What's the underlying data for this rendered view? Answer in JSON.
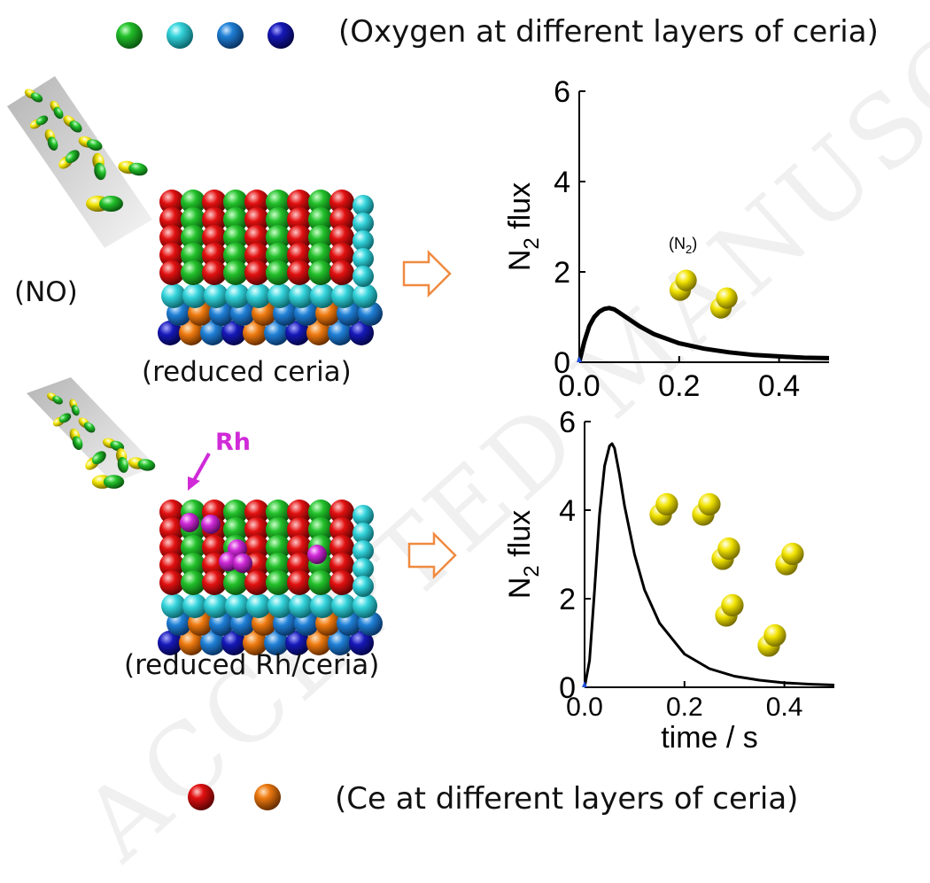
{
  "legend": {
    "oxygen_text": "(Oxygen at different layers of ceria)",
    "ce_text": "(Ce at different layers of ceria)",
    "oxygen_colors": [
      "#22c02a",
      "#35d4dc",
      "#1f80d6",
      "#1618b8"
    ],
    "ce_colors": [
      "#e21010",
      "#ee7a10"
    ]
  },
  "labels": {
    "no": "(NO)",
    "reduced_ceria": "(reduced ceria)",
    "reduced_rh_ceria": "(reduced Rh/ceria)",
    "rh": "Rh",
    "n2_molecule": "(N",
    "n2_sub": "2",
    "n2_close": ")"
  },
  "watermark": "ACCEPTED MANUSCRIPT",
  "colors": {
    "oxygen_green": "#22c02a",
    "oxygen_cyan": "#35d4dc",
    "oxygen_blue": "#1f80d6",
    "oxygen_navy": "#1618b8",
    "ce_red": "#e21010",
    "ce_orange": "#ee7a10",
    "rh_magenta": "#d02ad8",
    "arrow_orange": "#f08a40",
    "n2_yellow": "#f2e400"
  },
  "chart_data": [
    {
      "type": "line",
      "ylabel": "N",
      "ylabel_sub": "2",
      "ylabel_rest": " flux",
      "xlabel": "",
      "xlim": [
        0,
        0.5
      ],
      "ylim": [
        0,
        6
      ],
      "xticks": [
        "0.0",
        "0.2",
        "0.4"
      ],
      "yticks": [
        "0",
        "2",
        "4",
        "6"
      ],
      "series": [
        {
          "x": [
            0.0,
            0.01,
            0.02,
            0.03,
            0.04,
            0.05,
            0.06,
            0.07,
            0.08,
            0.1,
            0.12,
            0.15,
            0.2,
            0.25,
            0.3,
            0.35,
            0.4,
            0.45,
            0.5
          ],
          "y": [
            0.0,
            0.45,
            0.8,
            1.0,
            1.12,
            1.18,
            1.2,
            1.17,
            1.1,
            0.95,
            0.8,
            0.62,
            0.42,
            0.3,
            0.22,
            0.16,
            0.13,
            0.1,
            0.09
          ]
        }
      ]
    },
    {
      "type": "line",
      "ylabel": "N",
      "ylabel_sub": "2",
      "ylabel_rest": " flux",
      "xlabel": "time / s",
      "xlim": [
        0,
        0.5
      ],
      "ylim": [
        0,
        6
      ],
      "xticks": [
        "0.0",
        "0.2",
        "0.4"
      ],
      "yticks": [
        "0",
        "2",
        "4",
        "6"
      ],
      "series": [
        {
          "x": [
            0.0,
            0.01,
            0.02,
            0.03,
            0.04,
            0.05,
            0.055,
            0.06,
            0.07,
            0.08,
            0.1,
            0.12,
            0.15,
            0.2,
            0.25,
            0.3,
            0.35,
            0.4,
            0.45,
            0.5
          ],
          "y": [
            0.0,
            0.6,
            2.2,
            3.9,
            5.0,
            5.45,
            5.5,
            5.4,
            4.8,
            4.1,
            3.0,
            2.2,
            1.45,
            0.75,
            0.42,
            0.25,
            0.16,
            0.1,
            0.07,
            0.05
          ]
        }
      ]
    }
  ]
}
